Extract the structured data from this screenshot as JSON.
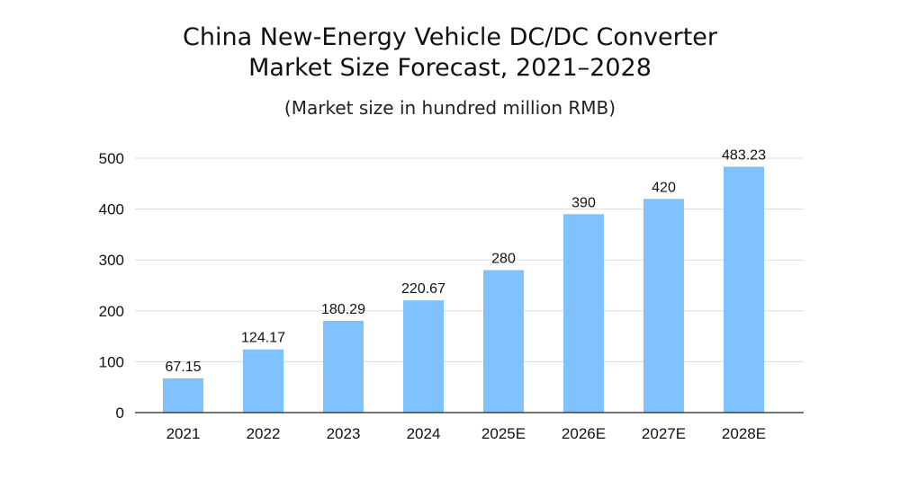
{
  "chart_data": {
    "type": "bar",
    "title_lines": [
      "China New-Energy Vehicle DC/DC Converter",
      "Market Size Forecast, 2021–2028"
    ],
    "subtitle": "(Market size in hundred million RMB)",
    "xlabel": "",
    "ylabel": "",
    "categories": [
      "2021",
      "2022",
      "2023",
      "2024",
      "2025E",
      "2026E",
      "2027E",
      "2028E"
    ],
    "values": [
      67.15,
      124.17,
      180.29,
      220.67,
      280,
      390,
      420,
      483.23
    ],
    "data_labels": [
      "67.15",
      "124.17",
      "180.29",
      "220.67",
      "280",
      "390",
      "420",
      "483.23"
    ],
    "ylim": [
      0,
      500
    ],
    "yticks": [
      0,
      100,
      200,
      300,
      400,
      500
    ],
    "grid": true,
    "legend": "none",
    "bar_color": "#80C1FF"
  }
}
